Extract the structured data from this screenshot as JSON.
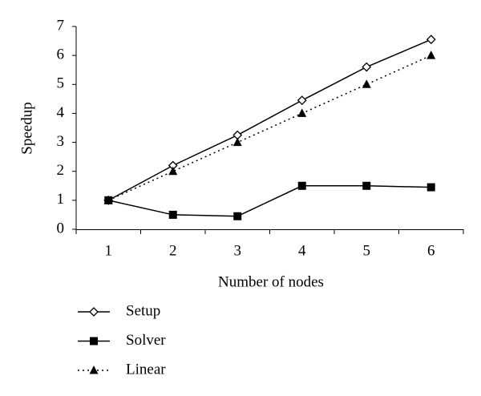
{
  "chart_data": {
    "type": "line",
    "x_label": "Number of nodes",
    "y_label": "Speedup",
    "categories": [
      "1",
      "2",
      "3",
      "4",
      "5",
      "6"
    ],
    "ylim": [
      0,
      7
    ],
    "yticks": [
      0,
      1,
      2,
      3,
      4,
      5,
      6,
      7
    ],
    "series": [
      {
        "name": "Setup",
        "color": "#000000",
        "marker": "diamond-open",
        "line": "solid",
        "values": [
          1,
          2.2,
          3.25,
          4.45,
          5.6,
          6.55
        ]
      },
      {
        "name": "Solver",
        "color": "#000000",
        "marker": "square",
        "line": "solid",
        "values": [
          1,
          0.5,
          0.45,
          1.5,
          1.5,
          1.45
        ]
      },
      {
        "name": "Linear",
        "color": "#000000",
        "marker": "triangle",
        "line": "dotted",
        "values": [
          1,
          2,
          3,
          4,
          5,
          6
        ]
      }
    ]
  }
}
